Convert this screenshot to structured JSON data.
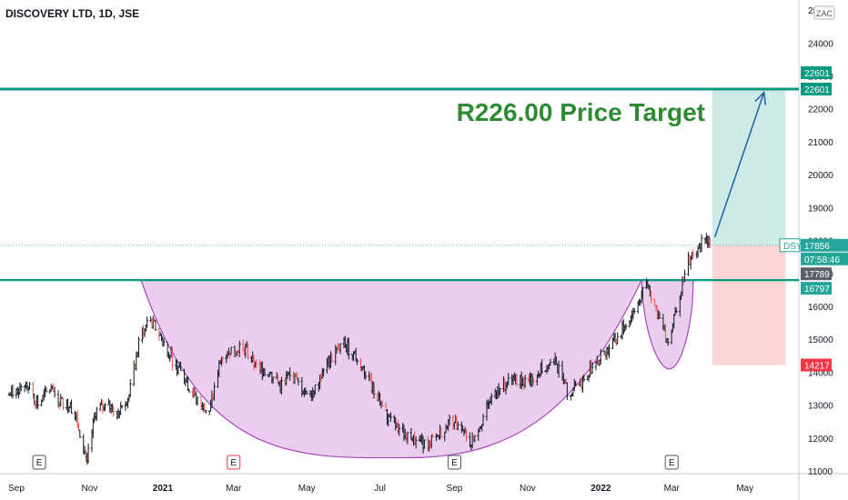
{
  "header": {
    "title": "DISCOVERY LTD, 1D, JSE",
    "currency_badge": "ZAC"
  },
  "annotation": {
    "price_target_label": "R226.00 Price Target"
  },
  "colors": {
    "up": "#26a69a",
    "down": "#ef5350",
    "bar": "#131722",
    "neckline": "#089981",
    "pattern_fill": "#e1bee7",
    "pattern_stroke": "#ab47bc",
    "target_fill": "#cdebe6",
    "stop_fill": "#fbd4d4",
    "arrow": "#1e5fa8",
    "annotation": "#2e8b34"
  },
  "price_axis": {
    "ticks": [
      "25000",
      "24000",
      "23000",
      "22000",
      "21000",
      "20000",
      "19000",
      "18000",
      "17000",
      "16000",
      "15000",
      "14000",
      "13000",
      "12000",
      "11000"
    ]
  },
  "time_axis": {
    "labels": [
      "Sep",
      "Nov",
      "2021",
      "Mar",
      "May",
      "Jul",
      "Sep",
      "Nov",
      "2022",
      "Mar",
      "May"
    ]
  },
  "event_markers": [
    {
      "label": "E",
      "style": "normal"
    },
    {
      "label": "E",
      "style": "red"
    },
    {
      "label": "E",
      "style": "normal"
    },
    {
      "label": "E",
      "style": "normal"
    }
  ],
  "price_tags": [
    {
      "text": "22601",
      "style": "green"
    },
    {
      "text": "22601",
      "style": "green"
    },
    {
      "text": "DSY",
      "style": "green-outline"
    },
    {
      "text": "17856",
      "style": "green"
    },
    {
      "text": "07:58:46",
      "style": "green"
    },
    {
      "text": "17789",
      "style": "grey"
    },
    {
      "text": "16797",
      "style": "green"
    },
    {
      "text": "14217",
      "style": "red"
    }
  ],
  "chart_data": {
    "type": "candlestick",
    "title": "DISCOVERY LTD, 1D, JSE",
    "x_range": [
      "2020-09-01",
      "2022-06-15"
    ],
    "ylim": [
      11000,
      25500
    ],
    "levels": {
      "price_target": 22601,
      "last_price": 17856,
      "prior_close": 17789,
      "neckline": 16797,
      "stop": 14217
    },
    "cup_and_handle": {
      "cup_rim_left": {
        "date": "2020-12-20",
        "price": 16797
      },
      "cup_bottom": {
        "date": "2021-08-01",
        "price": 11400
      },
      "cup_rim_right": {
        "date": "2022-02-10",
        "price": 16797
      },
      "handle_bottom": {
        "date": "2022-03-05",
        "price": 14100
      },
      "handle_rim_right": {
        "date": "2022-03-25",
        "price": 16797
      }
    },
    "projection": {
      "from": {
        "date": "2022-04-12",
        "price": 18100
      },
      "to": {
        "date": "2022-05-23",
        "price": 22500
      },
      "zone_start": "2022-04-10",
      "zone_end": "2022-06-10"
    },
    "price_path": [
      [
        "2020-09-01",
        13300
      ],
      [
        "2020-09-15",
        13700
      ],
      [
        "2020-09-25",
        13000
      ],
      [
        "2020-10-05",
        13500
      ],
      [
        "2020-10-15",
        13100
      ],
      [
        "2020-10-25",
        12900
      ],
      [
        "2020-11-01",
        11900
      ],
      [
        "2020-11-05",
        11300
      ],
      [
        "2020-11-12",
        12800
      ],
      [
        "2020-11-20",
        13000
      ],
      [
        "2020-11-30",
        12800
      ],
      [
        "2020-12-10",
        13300
      ],
      [
        "2020-12-20",
        15200
      ],
      [
        "2020-12-28",
        15600
      ],
      [
        "2021-01-05",
        15100
      ],
      [
        "2021-01-15",
        14400
      ],
      [
        "2021-01-25",
        13800
      ],
      [
        "2021-02-05",
        13100
      ],
      [
        "2021-02-15",
        12800
      ],
      [
        "2021-02-25",
        14500
      ],
      [
        "2021-03-05",
        14700
      ],
      [
        "2021-03-15",
        14800
      ],
      [
        "2021-03-25",
        14200
      ],
      [
        "2021-04-05",
        14000
      ],
      [
        "2021-04-15",
        13600
      ],
      [
        "2021-04-25",
        13900
      ],
      [
        "2021-05-05",
        13400
      ],
      [
        "2021-05-15",
        13500
      ],
      [
        "2021-05-25",
        14300
      ],
      [
        "2021-06-05",
        14900
      ],
      [
        "2021-06-15",
        14600
      ],
      [
        "2021-06-25",
        14000
      ],
      [
        "2021-07-05",
        13200
      ],
      [
        "2021-07-15",
        12500
      ],
      [
        "2021-07-25",
        12200
      ],
      [
        "2021-08-05",
        12000
      ],
      [
        "2021-08-15",
        11800
      ],
      [
        "2021-08-25",
        12100
      ],
      [
        "2021-09-05",
        12600
      ],
      [
        "2021-09-12",
        12200
      ],
      [
        "2021-09-20",
        11900
      ],
      [
        "2021-09-28",
        12400
      ],
      [
        "2021-10-08",
        13200
      ],
      [
        "2021-10-20",
        13700
      ],
      [
        "2021-11-01",
        13800
      ],
      [
        "2021-11-10",
        13700
      ],
      [
        "2021-11-20",
        14200
      ],
      [
        "2021-11-30",
        14300
      ],
      [
        "2021-12-10",
        13400
      ],
      [
        "2021-12-20",
        13600
      ],
      [
        "2021-12-31",
        14200
      ],
      [
        "2022-01-10",
        14600
      ],
      [
        "2022-01-20",
        15000
      ],
      [
        "2022-01-30",
        15600
      ],
      [
        "2022-02-10",
        16300
      ],
      [
        "2022-02-15",
        16700
      ],
      [
        "2022-02-22",
        15900
      ],
      [
        "2022-03-01",
        15200
      ],
      [
        "2022-03-05",
        14800
      ],
      [
        "2022-03-10",
        15900
      ],
      [
        "2022-03-15",
        16500
      ],
      [
        "2022-03-20",
        17300
      ],
      [
        "2022-03-28",
        17600
      ],
      [
        "2022-04-03",
        18200
      ],
      [
        "2022-04-10",
        17900
      ]
    ]
  }
}
